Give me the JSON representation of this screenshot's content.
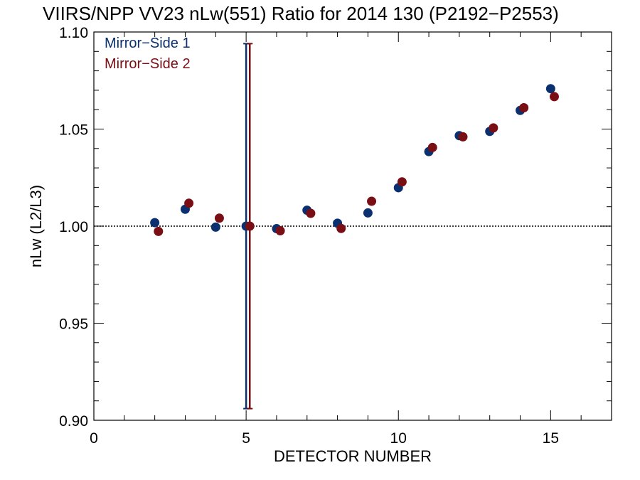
{
  "chart_data": {
    "type": "scatter",
    "title": "VIIRS/NPP VV23 nLw(551) Ratio for 2014 130 (P2192−P2553)",
    "xlabel": "DETECTOR NUMBER",
    "ylabel": "nLw (L2/L3)",
    "xlim": [
      0,
      17
    ],
    "ylim": [
      0.9,
      1.1
    ],
    "x_ticks": [
      0,
      5,
      10,
      15
    ],
    "x_tick_labels": [
      "0",
      "5",
      "10",
      "15"
    ],
    "y_ticks": [
      0.9,
      0.95,
      1.0,
      1.05,
      1.1
    ],
    "y_tick_labels": [
      "0.90",
      "0.95",
      "1.00",
      "1.05",
      "1.10"
    ],
    "reference_line": 1.0,
    "legend_position": "top-left",
    "series": [
      {
        "name": "Mirror−Side 1",
        "color": "#0b3070",
        "x": [
          2,
          3,
          4,
          5,
          6,
          7,
          8,
          9,
          10,
          11,
          12,
          13,
          14,
          15
        ],
        "y": [
          1.0018,
          1.0087,
          0.9995,
          1.0,
          0.9987,
          1.0082,
          1.0015,
          1.0068,
          1.0198,
          1.0384,
          1.0466,
          1.0488,
          1.0596,
          1.0708
        ],
        "error_bar": {
          "x": 5,
          "low": 0.906,
          "high": 1.094
        }
      },
      {
        "name": "Mirror−Side 2",
        "color": "#7a0e15",
        "x": [
          2.12,
          3.12,
          4.12,
          5.12,
          6.12,
          7.12,
          8.12,
          9.12,
          10.12,
          11.12,
          12.12,
          13.12,
          14.12,
          15.12
        ],
        "y": [
          0.9973,
          1.0118,
          1.0041,
          1.0,
          0.9976,
          1.0066,
          0.9988,
          1.0128,
          1.0228,
          1.0405,
          1.046,
          1.0506,
          1.061,
          1.0667
        ],
        "error_bar": {
          "x": 5.12,
          "low": 0.906,
          "high": 1.094
        }
      }
    ]
  }
}
